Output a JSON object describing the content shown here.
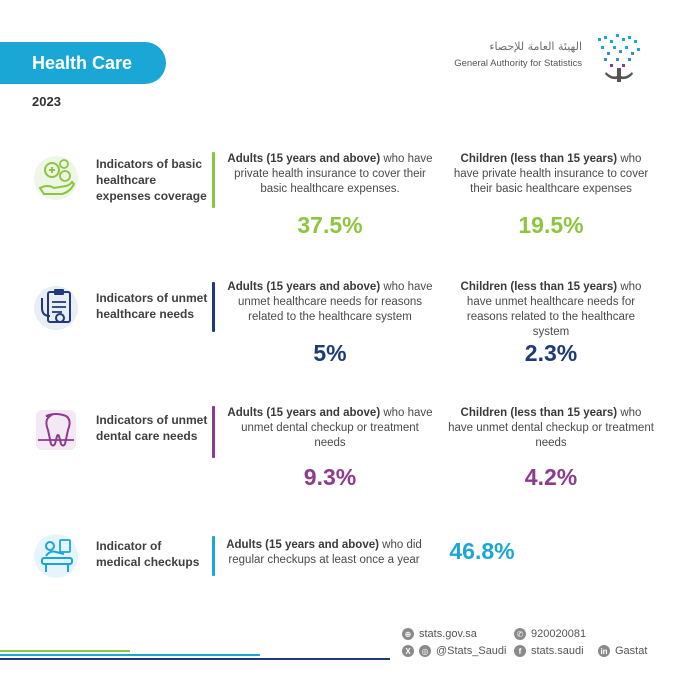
{
  "header": {
    "title": "Health Care",
    "year": "2023",
    "logo_ar": "الهيئة العامة للإحصاء",
    "logo_en": "General Authority for Statistics"
  },
  "rows": [
    {
      "label": "Indicators of basic healthcare expenses coverage",
      "icon": "health-insurance-icon",
      "color": "#8cc63f",
      "adults_bold": "Adults (15 years and above)",
      "adults_text": " who have private health insurance to cover their basic healthcare expenses.",
      "adults_value": "37.5%",
      "children_bold": "Children (less than 15 years)",
      "children_text": " who have private health insurance to cover their basic healthcare expenses",
      "children_value": "19.5%"
    },
    {
      "label": "Indicators of unmet healthcare needs",
      "icon": "clipboard-stethoscope-icon",
      "color": "#1e3a78",
      "adults_bold": "Adults (15 years and above)",
      "adults_text": " who have unmet healthcare needs for reasons related to the healthcare system",
      "adults_value": "5%",
      "children_bold": "Children (less than 15 years)",
      "children_text": " who have unmet healthcare needs for reasons related to the healthcare system",
      "children_value": "2.3%"
    },
    {
      "label": "Indicators of unmet dental care needs",
      "icon": "tooth-icon",
      "color": "#8e3a8e",
      "adults_bold": "Adults (15 years and above)",
      "adults_text": " who have unmet dental checkup or treatment needs",
      "adults_value": "9.3%",
      "children_bold": "Children (less than 15 years)",
      "children_text": " who have unmet dental checkup or treatment needs",
      "children_value": "4.2%"
    },
    {
      "label": "Indicator of medical checkups",
      "icon": "medical-checkup-icon",
      "color": "#1aa7d6",
      "adults_bold": "Adults (15 years and above)",
      "adults_text": " who did regular checkups at least once a year",
      "adults_value": "46.8%"
    }
  ],
  "footer": {
    "website": "stats.gov.sa",
    "phone": "920020081",
    "twitter": "@Stats_Saudi",
    "facebook": "stats.saudi",
    "linkedin": "Gastat"
  }
}
